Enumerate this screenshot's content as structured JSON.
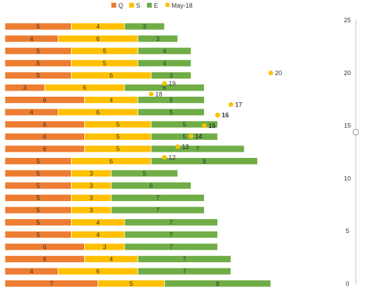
{
  "chart_data": {
    "type": "bar",
    "orientation": "horizontal",
    "stacked": true,
    "legend_position": "top",
    "legend": [
      {
        "name": "Q",
        "marker": "square",
        "color": "#ED7D31"
      },
      {
        "name": "S",
        "marker": "square",
        "color": "#FFC000"
      },
      {
        "name": "E",
        "marker": "square",
        "color": "#70AD47"
      },
      {
        "name": "May-18",
        "marker": "circle",
        "color": "#FFC000"
      }
    ],
    "series": [
      {
        "name": "Q",
        "color": "#ED7D31",
        "values": [
          5,
          4,
          5,
          5,
          5,
          3,
          6,
          4,
          6,
          6,
          6,
          5,
          5,
          5,
          5,
          5,
          5,
          5,
          6,
          6,
          4,
          7
        ]
      },
      {
        "name": "S",
        "color": "#FFC000",
        "values": [
          4,
          6,
          5,
          5,
          6,
          6,
          4,
          6,
          5,
          5,
          5,
          6,
          3,
          3,
          3,
          3,
          4,
          4,
          3,
          4,
          6,
          5
        ]
      },
      {
        "name": "E",
        "color": "#70AD47",
        "values": [
          3,
          3,
          4,
          4,
          3,
          6,
          5,
          5,
          5,
          5,
          7,
          8,
          5,
          6,
          7,
          7,
          7,
          7,
          7,
          7,
          7,
          8
        ]
      }
    ],
    "scatter": {
      "name": "May-18",
      "color": "#FFC000",
      "points": [
        {
          "x": 20,
          "y": 20
        },
        {
          "x": 12,
          "y": 19
        },
        {
          "x": 11,
          "y": 18
        },
        {
          "x": 17,
          "y": 17
        },
        {
          "x": 17,
          "y": 17
        },
        {
          "x": 16,
          "y": 16
        },
        {
          "x": 16,
          "y": 16
        },
        {
          "x": 16,
          "y": 16
        },
        {
          "x": 16,
          "y": 16
        },
        {
          "x": 16,
          "y": 16
        },
        {
          "x": 15,
          "y": 15
        },
        {
          "x": 15,
          "y": 15
        },
        {
          "x": 15,
          "y": 15
        },
        {
          "x": 15,
          "y": 15
        },
        {
          "x": 14,
          "y": 14
        },
        {
          "x": 14,
          "y": 14
        },
        {
          "x": 14,
          "y": 14
        },
        {
          "x": 14,
          "y": 14
        },
        {
          "x": 13,
          "y": 13
        },
        {
          "x": 13,
          "y": 13
        },
        {
          "x": 12,
          "y": 12
        }
      ]
    },
    "xlim": [
      0,
      26
    ],
    "secondary_y_axis": {
      "position": "right",
      "ticks": [
        0,
        5,
        10,
        15,
        20,
        25
      ],
      "ylim": [
        0,
        25
      ]
    },
    "grid": false
  }
}
